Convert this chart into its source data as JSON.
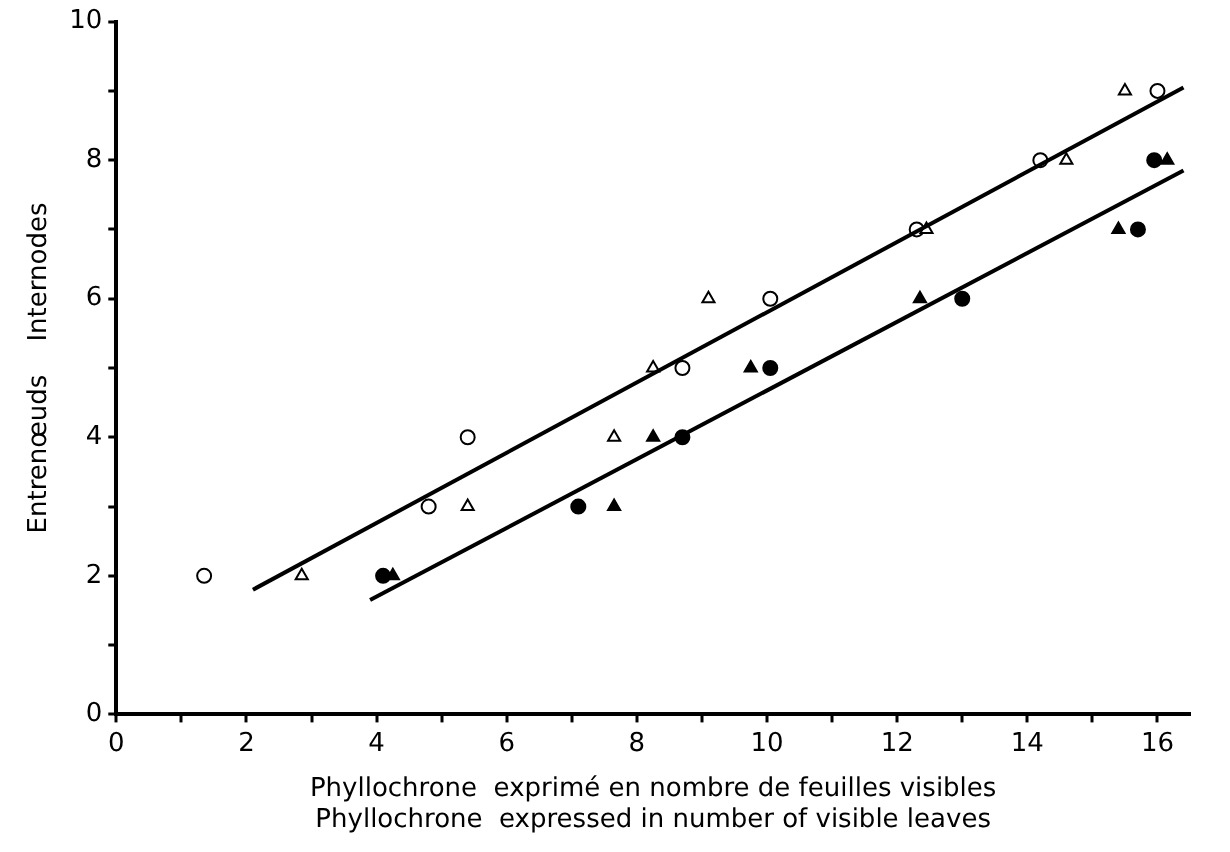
{
  "chart_data": {
    "type": "scatter",
    "xlabel": "Phyllochrone  exprimé en nombre de feuilles visibles\nPhyllochrone  expressed in number of visible leaves",
    "ylabel": "Entrenœuds    Internodes",
    "xlim": [
      0,
      16.5
    ],
    "ylim": [
      0,
      10
    ],
    "xticks": [
      0,
      {
        "value": 1,
        "label": null
      },
      2,
      {
        "value": 3,
        "label": null
      },
      4,
      {
        "value": 5,
        "label": null
      },
      6,
      {
        "value": 7,
        "label": null
      },
      8,
      {
        "value": 9,
        "label": null
      },
      10,
      {
        "value": 11,
        "label": null
      },
      12,
      {
        "value": 13,
        "label": null
      },
      14,
      {
        "value": 15,
        "label": null
      },
      16
    ],
    "yticks": [
      0,
      {
        "value": 1,
        "label": null
      },
      2,
      {
        "value": 3,
        "label": null
      },
      4,
      {
        "value": 5,
        "label": null
      },
      6,
      {
        "value": 7,
        "label": null
      },
      8,
      {
        "value": 9,
        "label": null
      },
      10
    ],
    "grid": false,
    "legend": false,
    "series": [
      {
        "color": "#ffffff",
        "marker": "circle",
        "x": [
          1.35,
          4.8,
          5.4,
          8.7,
          10.05,
          12.3,
          14.2,
          16.0
        ],
        "values": [
          2,
          3,
          4,
          5,
          6,
          7,
          8,
          9
        ]
      },
      {
        "color": "#ffffff",
        "marker": "triangle",
        "x": [
          2.85,
          5.4,
          7.65,
          8.25,
          9.1,
          12.45,
          14.6,
          15.5
        ],
        "values": [
          2,
          3,
          4,
          5,
          6,
          7,
          8,
          9
        ]
      },
      {
        "color": "#000000",
        "marker": "circle",
        "x": [
          4.1,
          7.1,
          8.7,
          10.05,
          13.0,
          15.7,
          15.95
        ],
        "values": [
          2,
          3,
          4,
          5,
          6,
          7,
          8
        ]
      },
      {
        "color": "#000000",
        "marker": "triangle",
        "x": [
          4.25,
          7.65,
          8.25,
          9.75,
          12.35,
          15.4,
          16.15
        ],
        "values": [
          2,
          3,
          4,
          5,
          6,
          7,
          8
        ]
      },
      {
        "type": "line",
        "color": "#000000",
        "line_style": "solid",
        "marker": "none",
        "x": [
          2.1,
          16.4
        ],
        "values": [
          1.8,
          9.05
        ]
      },
      {
        "type": "line",
        "color": "#000000",
        "line_style": "solid",
        "marker": "none",
        "x": [
          3.9,
          16.4
        ],
        "values": [
          1.65,
          7.85
        ]
      }
    ]
  }
}
